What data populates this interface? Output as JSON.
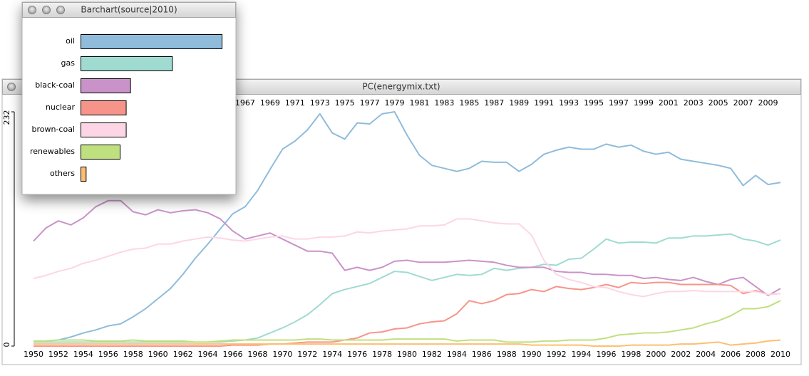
{
  "chart_data": [
    {
      "type": "line",
      "title": "PC(energymix.txt)",
      "x": [
        1950,
        1951,
        1952,
        1953,
        1954,
        1955,
        1956,
        1957,
        1958,
        1959,
        1960,
        1961,
        1962,
        1963,
        1964,
        1965,
        1966,
        1967,
        1968,
        1969,
        1970,
        1971,
        1972,
        1973,
        1974,
        1975,
        1976,
        1977,
        1978,
        1979,
        1980,
        1981,
        1982,
        1983,
        1984,
        1985,
        1986,
        1987,
        1988,
        1989,
        1990,
        1991,
        1992,
        1993,
        1994,
        1995,
        1996,
        1997,
        1998,
        1999,
        2000,
        2001,
        2002,
        2003,
        2004,
        2005,
        2006,
        2007,
        2008,
        2009,
        2010
      ],
      "xlim": [
        1950,
        2010
      ],
      "xticks": [
        1950,
        1952,
        1954,
        1956,
        1958,
        1960,
        1962,
        1964,
        1966,
        1968,
        1970,
        1972,
        1974,
        1976,
        1978,
        1980,
        1982,
        1984,
        1986,
        1988,
        1990,
        1992,
        1994,
        1996,
        1998,
        2000,
        2002,
        2004,
        2006,
        2008,
        2010
      ],
      "x2ticks": [
        1967,
        1969,
        1971,
        1973,
        1975,
        1977,
        1979,
        1981,
        1983,
        1985,
        1987,
        1989,
        1991,
        1993,
        1995,
        1997,
        1999,
        2001,
        2003,
        2005,
        2007,
        2009
      ],
      "ylim": [
        0,
        232
      ],
      "yticks": [
        0,
        232
      ],
      "series": [
        {
          "name": "oil",
          "color": "#8fbcdb",
          "values": [
            4,
            5,
            6,
            9,
            13,
            16,
            20,
            22,
            29,
            37,
            47,
            57,
            71,
            87,
            101,
            116,
            131,
            138,
            154,
            175,
            195,
            203,
            214,
            230,
            211,
            205,
            221,
            220,
            230,
            232,
            209,
            189,
            179,
            176,
            173,
            176,
            183,
            182,
            182,
            173,
            180,
            190,
            194,
            197,
            195,
            195,
            200,
            197,
            199,
            193,
            190,
            192,
            185,
            183,
            181,
            179,
            176,
            159,
            169,
            160,
            162
          ]
        },
        {
          "name": "gas",
          "color": "#9fdbd0",
          "values": [
            4,
            4,
            4,
            4,
            4,
            4,
            4,
            4,
            4,
            4,
            4,
            4,
            4,
            4,
            4,
            4,
            5,
            6,
            8,
            13,
            18,
            24,
            31,
            41,
            52,
            56,
            59,
            62,
            68,
            74,
            73,
            69,
            65,
            68,
            71,
            70,
            71,
            77,
            75,
            77,
            78,
            81,
            80,
            86,
            87,
            96,
            106,
            102,
            103,
            103,
            102,
            107,
            107,
            109,
            109,
            110,
            111,
            106,
            104,
            100,
            105
          ]
        },
        {
          "name": "black-coal",
          "color": "#c993c9",
          "values": [
            104,
            117,
            124,
            120,
            127,
            138,
            144,
            144,
            133,
            130,
            135,
            132,
            134,
            135,
            132,
            126,
            114,
            106,
            109,
            112,
            106,
            100,
            94,
            94,
            92,
            75,
            78,
            75,
            78,
            84,
            85,
            83,
            83,
            83,
            84,
            85,
            84,
            83,
            80,
            78,
            78,
            78,
            74,
            73,
            73,
            71,
            71,
            70,
            70,
            67,
            68,
            66,
            65,
            68,
            64,
            61,
            66,
            68,
            59,
            50,
            57
          ]
        },
        {
          "name": "nuclear",
          "color": "#f7948a",
          "values": [
            0,
            0,
            0,
            0,
            0,
            0,
            0,
            0,
            0,
            0,
            0,
            0,
            0,
            0,
            0,
            0,
            1,
            1,
            1,
            2,
            2,
            3,
            4,
            4,
            4,
            6,
            8,
            13,
            14,
            17,
            18,
            22,
            24,
            25,
            32,
            45,
            42,
            45,
            51,
            52,
            56,
            54,
            59,
            57,
            56,
            58,
            61,
            58,
            63,
            62,
            63,
            63,
            61,
            61,
            61,
            61,
            60,
            52,
            55,
            51,
            52
          ]
        },
        {
          "name": "brown-coal",
          "color": "#fdd6e5",
          "values": [
            67,
            70,
            74,
            77,
            82,
            85,
            89,
            93,
            96,
            97,
            101,
            101,
            104,
            106,
            108,
            107,
            105,
            104,
            106,
            108,
            109,
            106,
            106,
            108,
            108,
            109,
            113,
            112,
            114,
            115,
            116,
            119,
            119,
            120,
            126,
            126,
            124,
            122,
            121,
            121,
            110,
            85,
            71,
            66,
            63,
            59,
            58,
            54,
            51,
            49,
            52,
            54,
            54,
            55,
            54,
            54,
            54,
            54,
            54,
            51,
            52
          ]
        },
        {
          "name": "renewables",
          "color": "#bfe07f",
          "values": [
            5,
            5,
            6,
            6,
            6,
            5,
            5,
            5,
            6,
            5,
            5,
            5,
            5,
            4,
            4,
            5,
            6,
            6,
            6,
            6,
            6,
            6,
            7,
            7,
            6,
            6,
            6,
            6,
            6,
            7,
            7,
            7,
            7,
            7,
            5,
            6,
            6,
            6,
            4,
            4,
            4,
            5,
            5,
            6,
            6,
            6,
            8,
            11,
            12,
            13,
            13,
            14,
            16,
            18,
            22,
            25,
            30,
            37,
            37,
            39,
            45
          ]
        },
        {
          "name": "others",
          "color": "#fdbf6f",
          "values": [
            2,
            2,
            2,
            2,
            2,
            2,
            2,
            2,
            2,
            2,
            2,
            2,
            2,
            2,
            2,
            2,
            2,
            2,
            2,
            2,
            2,
            2,
            2,
            2,
            2,
            2,
            2,
            2,
            2,
            2,
            2,
            2,
            2,
            2,
            2,
            2,
            2,
            2,
            2,
            2,
            1,
            1,
            1,
            1,
            1,
            0,
            0,
            0,
            1,
            1,
            1,
            1,
            2,
            2,
            3,
            4,
            1,
            2,
            3,
            5,
            6
          ]
        }
      ]
    },
    {
      "type": "bar",
      "title": "Barchart(source|2010)",
      "orientation": "horizontal",
      "categories": [
        "oil",
        "gas",
        "black-coal",
        "nuclear",
        "brown-coal",
        "renewables",
        "others"
      ],
      "values": [
        162,
        105,
        57,
        52,
        52,
        45,
        6
      ],
      "colors": [
        "#8fbcdb",
        "#9fdbd0",
        "#c993c9",
        "#f7948a",
        "#fdd6e5",
        "#bfe07f",
        "#fdbf6f"
      ]
    }
  ]
}
